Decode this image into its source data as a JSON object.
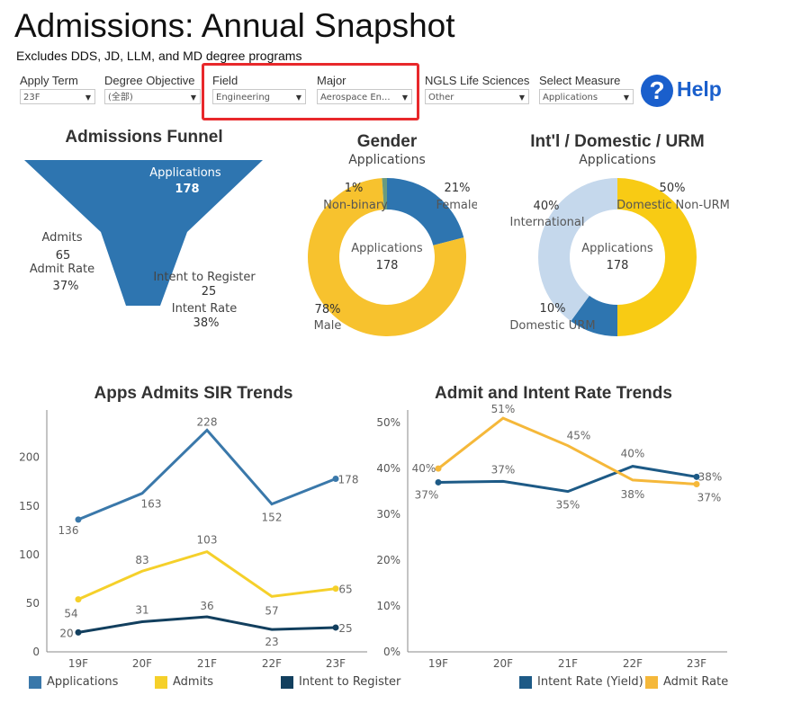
{
  "page": {
    "title": "Admissions: Annual Snapshot",
    "subtitle": "Excludes DDS, JD, LLM, and MD degree programs"
  },
  "filters": [
    {
      "label": "Apply Term",
      "value": "23F"
    },
    {
      "label": "Degree Objective",
      "value": "(全部)"
    },
    {
      "label": "Field",
      "value": "Engineering"
    },
    {
      "label": "Major",
      "value": "Aerospace En..."
    },
    {
      "label": "NGLS Life Sciences",
      "value": "Other"
    },
    {
      "label": "Select Measure",
      "value": "Applications"
    }
  ],
  "help": {
    "icon": "question-icon",
    "label": "Help"
  },
  "funnel": {
    "title": "Admissions Funnel",
    "color": "#2e75b0",
    "applications_label": "Applications",
    "applications_value": "178",
    "admits_label": "Admits",
    "admits_value": "65",
    "admit_rate_label": "Admit Rate",
    "admit_rate_value": "37%",
    "intent_label": "Intent to Register",
    "intent_value": "25",
    "intent_rate_label": "Intent Rate",
    "intent_rate_value": "38%"
  },
  "gender": {
    "title": "Gender",
    "subtitle": "Applications",
    "center_label": "Applications",
    "center_value": "178",
    "slices": [
      {
        "name": "Female",
        "pct": "21%",
        "value": 21,
        "color": "#2e75b0"
      },
      {
        "name": "Male",
        "pct": "78%",
        "value": 78,
        "color": "#f7c22e"
      },
      {
        "name": "Non-binary",
        "pct": "1%",
        "value": 1,
        "color": "#6a9b7e"
      }
    ]
  },
  "intl": {
    "title": "Int'l / Domestic / URM",
    "subtitle": "Applications",
    "center_label": "Applications",
    "center_value": "178",
    "slices": [
      {
        "name": "Domestic Non-URM",
        "pct": "50%",
        "value": 50,
        "color": "#f8cb14"
      },
      {
        "name": "Domestic URM",
        "pct": "10%",
        "value": 10,
        "color": "#2e75b0"
      },
      {
        "name": "International",
        "pct": "40%",
        "value": 40,
        "color": "#c5d8ec"
      }
    ]
  },
  "chart_data": [
    {
      "type": "line",
      "title": "Apps Admits SIR Trends",
      "categories": [
        "19F",
        "20F",
        "21F",
        "22F",
        "23F"
      ],
      "ylim": [
        0,
        245
      ],
      "yticks": [
        "0",
        "50",
        "100",
        "150",
        "200"
      ],
      "series": [
        {
          "name": "Applications",
          "color": "#3a78aa",
          "values": [
            136,
            163,
            228,
            152,
            178
          ],
          "labels": [
            "136",
            "163",
            "228",
            "152",
            "178"
          ]
        },
        {
          "name": "Admits",
          "color": "#f5d02a",
          "values": [
            54,
            83,
            103,
            57,
            65
          ],
          "labels": [
            "54",
            "83",
            "103",
            "57",
            "65"
          ]
        },
        {
          "name": "Intent to Register",
          "color": "#123f5e",
          "values": [
            20,
            31,
            36,
            23,
            25
          ],
          "labels": [
            "20",
            "31",
            "36",
            "23",
            "25"
          ]
        }
      ]
    },
    {
      "type": "line",
      "title": "Admit and Intent Rate Trends",
      "categories": [
        "19F",
        "20F",
        "21F",
        "22F",
        "23F"
      ],
      "ylim": [
        0,
        52
      ],
      "yticks": [
        "0%",
        "10%",
        "20%",
        "30%",
        "40%",
        "50%"
      ],
      "series": [
        {
          "name": "Intent Rate (Yield)",
          "color": "#1d5a86",
          "values": [
            37,
            37.2,
            35,
            40.5,
            38.2
          ],
          "labels": [
            "37%",
            "37%",
            "35%",
            "40%",
            "38%"
          ]
        },
        {
          "name": "Admit Rate",
          "color": "#f5b83a",
          "values": [
            40,
            51,
            45,
            37.5,
            36.6
          ],
          "labels": [
            "40%",
            "51%",
            "45%",
            "38%",
            "37%"
          ]
        }
      ]
    }
  ]
}
